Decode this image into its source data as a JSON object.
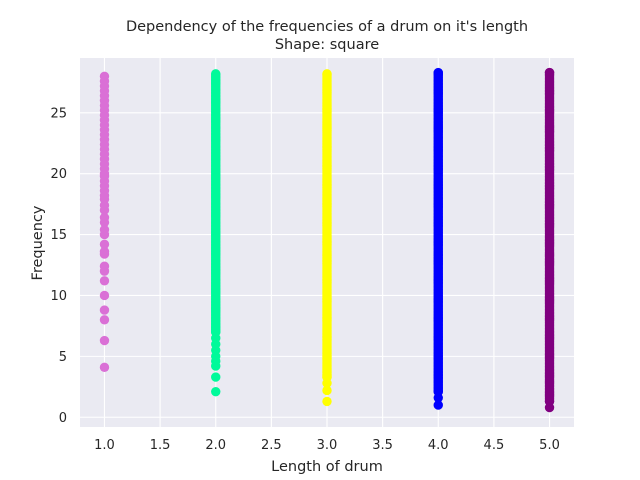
{
  "chart_data": {
    "type": "scatter",
    "title": "Dependency of the frequencies of a drum on it's length",
    "subtitle": "Shape: square",
    "xlabel": "Length of drum",
    "ylabel": "Frequency",
    "xlim": [
      0.78,
      5.22
    ],
    "ylim": [
      -0.8,
      29.5
    ],
    "xticks": [
      1.0,
      1.5,
      2.0,
      2.5,
      3.0,
      3.5,
      4.0,
      4.5,
      5.0
    ],
    "yticks": [
      0,
      5,
      10,
      15,
      20,
      25
    ],
    "xtick_labels": [
      "1.0",
      "1.5",
      "2.0",
      "2.5",
      "3.0",
      "3.5",
      "4.0",
      "4.5",
      "5.0"
    ],
    "ytick_labels": [
      "0",
      "5",
      "10",
      "15",
      "20",
      "25"
    ],
    "grid": true,
    "background": "#eaeaf2",
    "series": [
      {
        "x": 1.0,
        "color": "#da70d6",
        "values": [
          4.1,
          6.3,
          8.0,
          8.8,
          10.0,
          11.2,
          12.0,
          12.4,
          13.4,
          13.6,
          14.2,
          15.0,
          15.4,
          16.0,
          16.4,
          17.0,
          17.4,
          17.9,
          18.2,
          18.6,
          19.0,
          19.4,
          19.8,
          20.0,
          20.4,
          20.8,
          21.2,
          21.6,
          22.0,
          22.4,
          22.8,
          23.2,
          23.6,
          24.0,
          24.4,
          24.8,
          25.2,
          25.6,
          26.0,
          26.4,
          26.8,
          27.2,
          27.6,
          28.0
        ]
      },
      {
        "x": 2.0,
        "color": "#00fa9a",
        "min": 2.1,
        "max": 28.2,
        "sparse": [
          2.1,
          3.3,
          4.2,
          4.6,
          5.0,
          5.5,
          6.0,
          6.5,
          7.0
        ]
      },
      {
        "x": 3.0,
        "color": "#ffff00",
        "min": 1.3,
        "max": 28.2,
        "sparse": [
          1.3,
          2.2,
          2.8,
          3.3
        ]
      },
      {
        "x": 4.0,
        "color": "#0000ff",
        "min": 1.0,
        "max": 28.3,
        "sparse": [
          1.0,
          1.6,
          2.1
        ]
      },
      {
        "x": 5.0,
        "color": "#800080",
        "min": 0.8,
        "max": 28.3,
        "sparse": [
          0.8,
          1.3
        ]
      }
    ]
  }
}
